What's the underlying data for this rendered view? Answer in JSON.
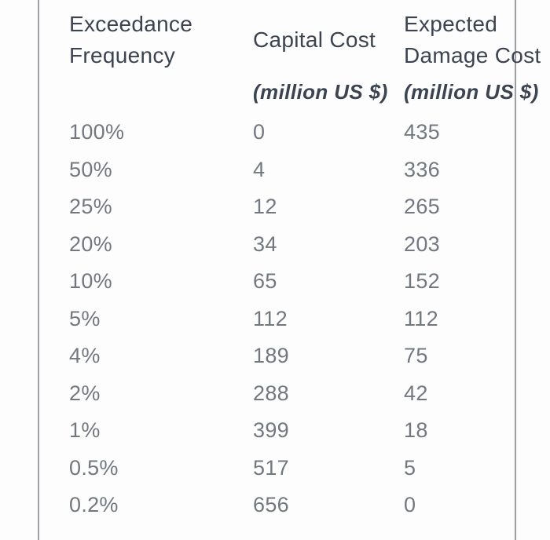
{
  "colors": {
    "background": "#fdfdfd",
    "header_text": "#3b4450",
    "data_text": "#71787f",
    "rule_line": "#9c9fa3"
  },
  "chart_data": {
    "type": "table",
    "title": "",
    "columns": [
      {
        "title_lines": [
          "Exceedance",
          "Frequency"
        ],
        "unit": ""
      },
      {
        "title_lines": [
          "Capital Cost"
        ],
        "unit": "(million US $)"
      },
      {
        "title_lines": [
          "Expected",
          "Damage Cost"
        ],
        "unit": "(million US $)"
      }
    ],
    "rows": [
      [
        "100%",
        "0",
        "435"
      ],
      [
        "50%",
        "4",
        "336"
      ],
      [
        "25%",
        "12",
        "265"
      ],
      [
        "20%",
        "34",
        "203"
      ],
      [
        "10%",
        "65",
        "152"
      ],
      [
        "5%",
        "112",
        "112"
      ],
      [
        "4%",
        "189",
        "75"
      ],
      [
        "2%",
        "288",
        "42"
      ],
      [
        "1%",
        "399",
        "18"
      ],
      [
        "0.5%",
        "517",
        "5"
      ],
      [
        "0.2%",
        "656",
        "0"
      ]
    ],
    "exceedance_frequency_pct": [
      100,
      50,
      25,
      20,
      10,
      5,
      4,
      2,
      1,
      0.5,
      0.2
    ],
    "capital_cost_million_usd": [
      0,
      4,
      12,
      34,
      65,
      112,
      189,
      288,
      399,
      517,
      656
    ],
    "expected_damage_cost_million_usd": [
      435,
      336,
      265,
      203,
      152,
      112,
      75,
      42,
      18,
      5,
      0
    ],
    "layout_hints": {
      "grid": "vertical rules at left and right edges only, no horizontal rules",
      "header_units_style": "bold italic"
    }
  }
}
